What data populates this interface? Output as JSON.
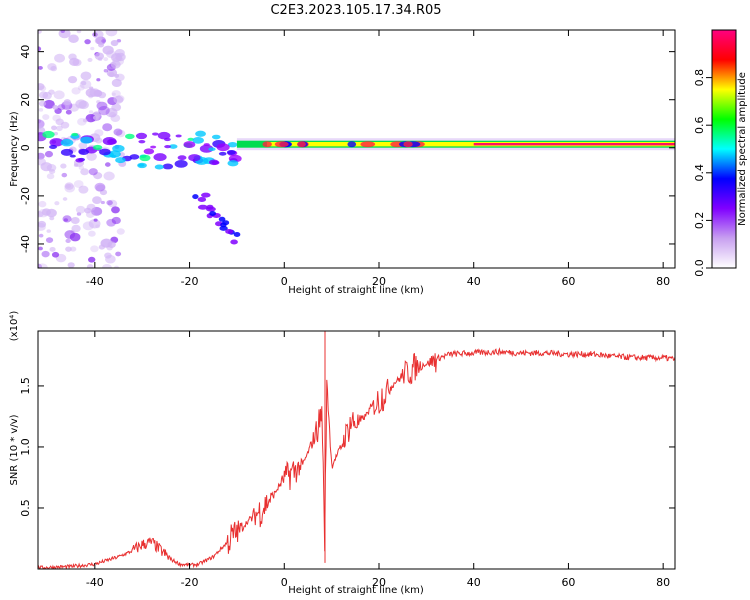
{
  "figure": {
    "title": "C2E3.2023.105.17.34.R05"
  },
  "chart_data": [
    {
      "type": "heatmap",
      "name": "spectrogram",
      "xlabel": "Height of straight line (km)",
      "ylabel": "Frequency (Hz)",
      "xlim": [
        -52,
        82.5
      ],
      "ylim": [
        -50,
        49
      ],
      "x_ticks": [
        -40,
        -20,
        0,
        20,
        40,
        60,
        80
      ],
      "y_ticks": [
        -40,
        -20,
        0,
        20,
        40
      ],
      "colorbar": {
        "label": "Normalized spectral amplitude",
        "range": [
          0,
          1
        ],
        "ticks": [
          0.0,
          0.2,
          0.4,
          0.6,
          0.8
        ],
        "colormap": [
          "#ffffff",
          "#c8a0f0",
          "#8000ff",
          "#0000ff",
          "#00ffff",
          "#00ff00",
          "#ffff00",
          "#ff0000",
          "#ff0080"
        ]
      },
      "features": [
        {
          "description_value": "main band",
          "x_range": [
            -10,
            82.5
          ],
          "frequency": 1.5,
          "amplitude": 0.9
        },
        {
          "description_value": "diffuse noise",
          "x_range": [
            -52,
            -38
          ],
          "frequency_range": [
            -50,
            49
          ],
          "amplitude": 0.15
        },
        {
          "description_value": "branch",
          "x_range": [
            -18,
            -10
          ],
          "frequency_range": [
            -38,
            -20
          ],
          "amplitude": 0.5
        }
      ]
    },
    {
      "type": "line",
      "name": "snr",
      "xlabel": "Height of straight line (km)",
      "ylabel": "SNR (10 * v/v)",
      "y_multiplier": "(x10⁴)",
      "xlim": [
        -52,
        82.5
      ],
      "ylim": [
        0,
        1.95
      ],
      "x_ticks": [
        -40,
        -20,
        0,
        20,
        40,
        60,
        80
      ],
      "y_ticks": [
        0.5,
        1.0,
        1.5
      ],
      "color": "#e83030",
      "series": [
        {
          "x": [
            -52,
            -45,
            -40,
            -35,
            -32,
            -30,
            -28,
            -26,
            -24,
            -22,
            -20,
            -18,
            -15,
            -12,
            -10,
            -8,
            -5,
            -2,
            0,
            2,
            4,
            6,
            7,
            8,
            8.5,
            9,
            10,
            12,
            14,
            16,
            18,
            20,
            22,
            24,
            26,
            28,
            30,
            32,
            35,
            40,
            45,
            50,
            55,
            60,
            65,
            70,
            75,
            80,
            82.5
          ],
          "y": [
            0.01,
            0.02,
            0.04,
            0.1,
            0.15,
            0.2,
            0.22,
            0.15,
            0.08,
            0.04,
            0.03,
            0.04,
            0.1,
            0.22,
            0.3,
            0.38,
            0.48,
            0.62,
            0.75,
            0.8,
            0.86,
            1.05,
            1.15,
            1.3,
            0.2,
            1.55,
            0.85,
            1.0,
            1.2,
            1.2,
            1.3,
            1.38,
            1.48,
            1.55,
            1.62,
            1.66,
            1.68,
            1.72,
            1.76,
            1.77,
            1.78,
            1.77,
            1.77,
            1.76,
            1.76,
            1.74,
            1.73,
            1.73,
            1.72
          ]
        }
      ]
    }
  ]
}
